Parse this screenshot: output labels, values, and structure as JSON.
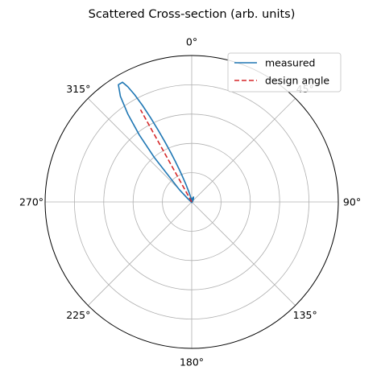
{
  "chart_data": {
    "type": "polar-line",
    "title": "Scattered Cross-section (arb. units)",
    "theta_direction": "clockwise",
    "theta_zero": "top",
    "theta_tick_labels": [
      "0°",
      "45°",
      "90°",
      "135°",
      "180°",
      "225°",
      "270°",
      "315°"
    ],
    "theta_ticks_deg": [
      0,
      45,
      90,
      135,
      180,
      225,
      270,
      315
    ],
    "r_gridlines": [
      1,
      2,
      3,
      4,
      5
    ],
    "r_max": 5,
    "r_tick_labels_visible": false,
    "grid": true,
    "legend_position": "top-right",
    "series": [
      {
        "name": "measured",
        "color": "#1f77b4",
        "style": "solid",
        "theta_deg": [
          0,
          10,
          20,
          30,
          45,
          60,
          90,
          180,
          270,
          300,
          310,
          315,
          320,
          322,
          324,
          326,
          328,
          330,
          331,
          332,
          333,
          334,
          335,
          336,
          337,
          338,
          339,
          340,
          342,
          345,
          350,
          355,
          360
        ],
        "r": [
          0.05,
          0.12,
          0.18,
          0.12,
          0.05,
          0.03,
          0.02,
          0.02,
          0.02,
          0.05,
          0.18,
          0.6,
          2.0,
          2.9,
          3.7,
          4.35,
          4.72,
          4.72,
          4.5,
          4.15,
          3.7,
          3.2,
          2.7,
          2.25,
          1.85,
          1.5,
          1.2,
          0.95,
          0.6,
          0.3,
          0.12,
          0.06,
          0.05
        ]
      },
      {
        "name": "design angle",
        "color": "#d62728",
        "style": "dashed",
        "theta_deg": [
          331,
          331
        ],
        "r": [
          0,
          3.6
        ]
      }
    ]
  }
}
